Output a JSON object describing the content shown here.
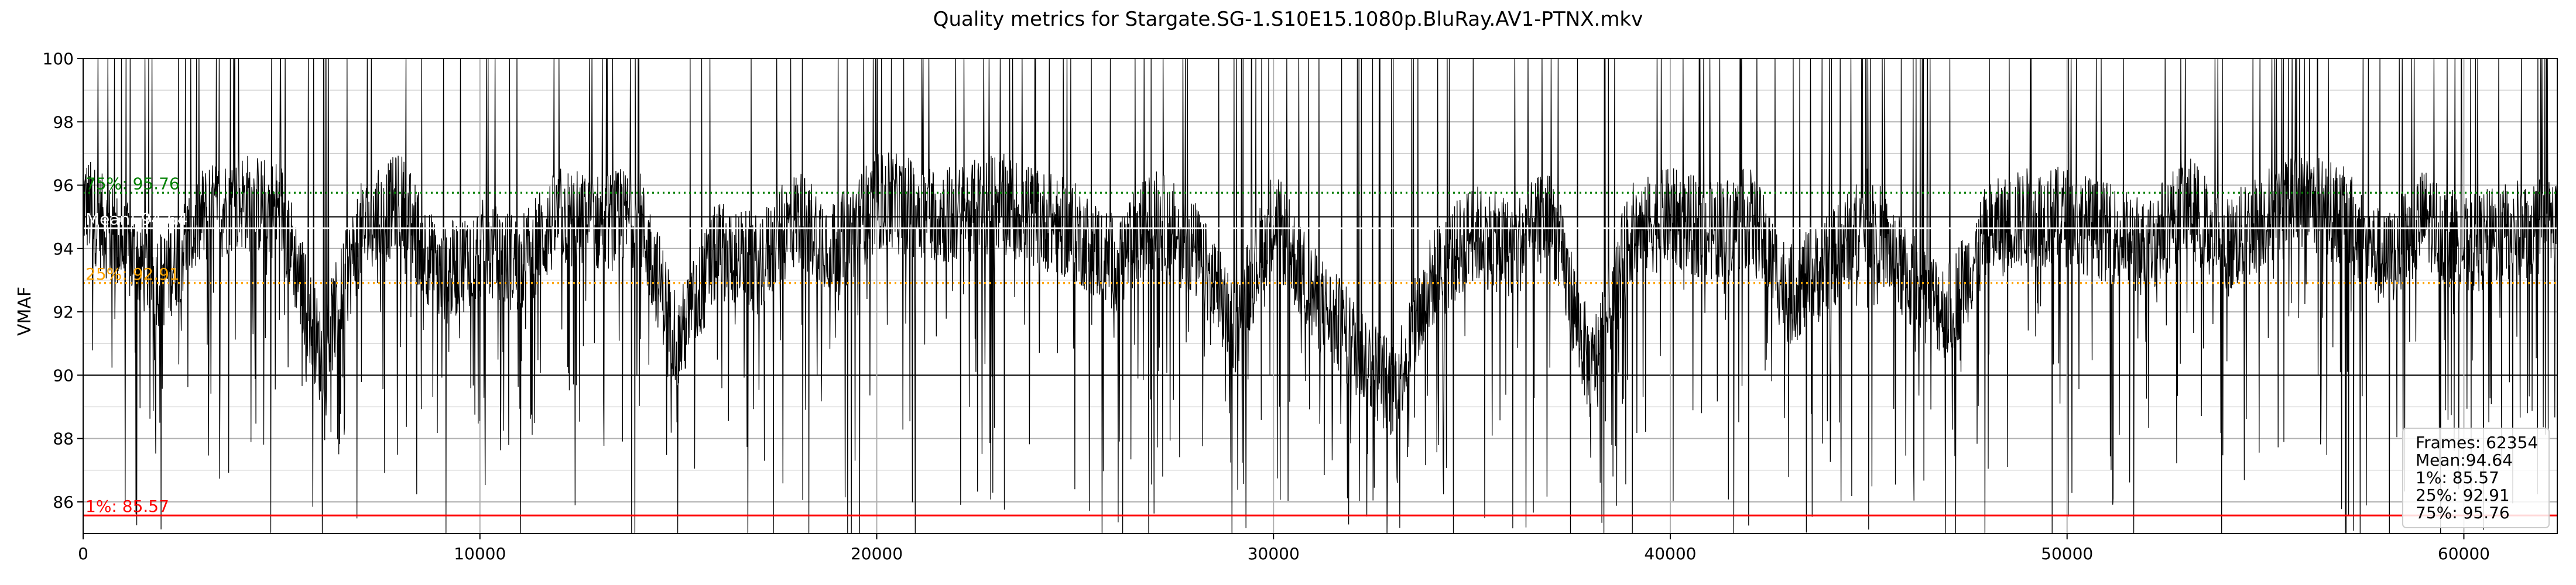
{
  "chart_data": {
    "type": "line",
    "title": "Quality metrics for Stargate.SG-1.S10E15.1080p.BluRay.AV1-PTNX.mkv",
    "xlabel": "",
    "ylabel": "VMAF",
    "xlim": [
      0,
      62354
    ],
    "ylim": [
      85,
      100
    ],
    "x_ticks": [
      0,
      10000,
      20000,
      30000,
      40000,
      50000,
      60000
    ],
    "y_ticks": [
      86,
      88,
      90,
      92,
      94,
      96,
      98,
      100
    ],
    "grid": true,
    "series": [
      {
        "color": "#000000",
        "approx_profile": {
          "x": [
            0,
            1000,
            2000,
            3000,
            4000,
            5000,
            6000,
            7000,
            8000,
            9000,
            10000,
            11000,
            12000,
            13000,
            14000,
            15000,
            16000,
            17000,
            18000,
            19000,
            20000,
            21000,
            22000,
            23000,
            24000,
            25000,
            26000,
            27000,
            28000,
            29000,
            30000,
            31000,
            32000,
            33000,
            34000,
            35000,
            36000,
            37000,
            38000,
            39000,
            40000,
            41000,
            42000,
            43000,
            44000,
            45000,
            46000,
            47000,
            48000,
            49000,
            50000,
            51000,
            52000,
            53000,
            54000,
            55000,
            56000,
            57000,
            58000,
            59000,
            60000,
            61000,
            62354
          ],
          "y": [
            95.5,
            94.0,
            93.0,
            95.0,
            95.5,
            95.2,
            90.5,
            94.5,
            95.5,
            93.0,
            94.0,
            93.5,
            95.0,
            94.8,
            95.0,
            91.0,
            94.0,
            93.5,
            95.0,
            94.0,
            95.5,
            95.3,
            95.0,
            95.5,
            95.0,
            94.5,
            93.5,
            95.0,
            94.0,
            91.5,
            95.0,
            92.5,
            91.0,
            89.5,
            93.0,
            94.5,
            94.0,
            95.0,
            90.0,
            94.5,
            95.0,
            94.5,
            95.0,
            92.5,
            93.5,
            95.0,
            93.0,
            92.0,
            94.5,
            95.0,
            95.0,
            94.5,
            94.0,
            95.5,
            94.0,
            95.0,
            95.5,
            95.0,
            93.5,
            95.0,
            94.0,
            94.5,
            94.8
          ]
        }
      }
    ],
    "reference_lines": [
      {
        "label": "Mean: 94.64",
        "value": 94.64,
        "color": "#ffffff",
        "style": "solid"
      },
      {
        "label": "1%: 85.57",
        "value": 85.57,
        "color": "#ff0000",
        "style": "solid"
      },
      {
        "label": "25%: 92.91",
        "value": 92.91,
        "color": "#ffa500",
        "style": "dotted"
      },
      {
        "label": "75%: 95.76",
        "value": 95.76,
        "color": "#008000",
        "style": "dotted"
      }
    ],
    "legend": {
      "placement": "lower-right",
      "lines": [
        "Frames: 62354",
        "Mean:94.64",
        "1%: 85.57",
        "25%: 92.91",
        "75%: 95.76"
      ]
    }
  }
}
